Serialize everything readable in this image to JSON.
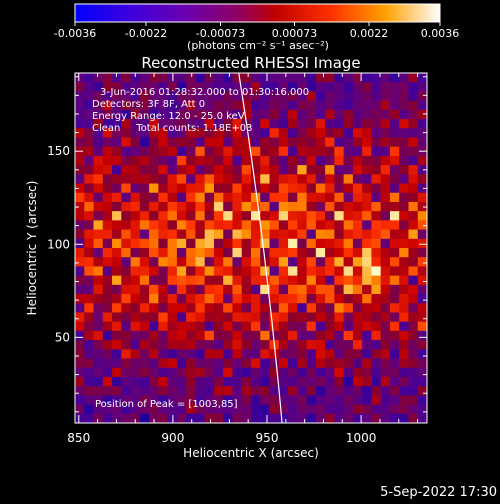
{
  "chart_data": {
    "type": "heatmap",
    "title": "Reconstructed RHESSI Image",
    "xlabel": "Heliocentric X (arcsec)",
    "ylabel": "Heliocentric Y (arcsec)",
    "xlim": [
      848,
      1035
    ],
    "ylim": [
      4,
      192
    ],
    "x_ticks": [
      850,
      900,
      950,
      1000
    ],
    "y_ticks": [
      50,
      100,
      150
    ],
    "annotations": [
      "3-Jun-2016 01:28:32.000 to 01:30:16.000",
      "Detectors: 3F 8F, Att 0",
      "Energy Range: 12.0 - 25.0 keV",
      "Clean     Total counts: 1.18E+03"
    ],
    "peak_label": "Position of Peak = [1003,85]",
    "peak": [
      1003,
      85
    ],
    "colorbar": {
      "ticks": [
        "-0.0036",
        "-0.0022",
        "-0.00073",
        "0.00073",
        "0.0022",
        "0.0036"
      ],
      "unit_label": "(photons cm⁻² s⁻¹ asec⁻²)",
      "range": [
        -0.0036,
        0.0036
      ],
      "colors": [
        "#0000ff",
        "#5a00c0",
        "#7a00a0",
        "#a00000",
        "#ff2000",
        "#ff8000",
        "#ffd000",
        "#ffffff"
      ]
    },
    "grid": false,
    "limb_arc_x_at_top": 935,
    "limb_arc_x_at_bottom": 958
  },
  "footer": {
    "timestamp": "5-Sep-2022 17:30"
  }
}
